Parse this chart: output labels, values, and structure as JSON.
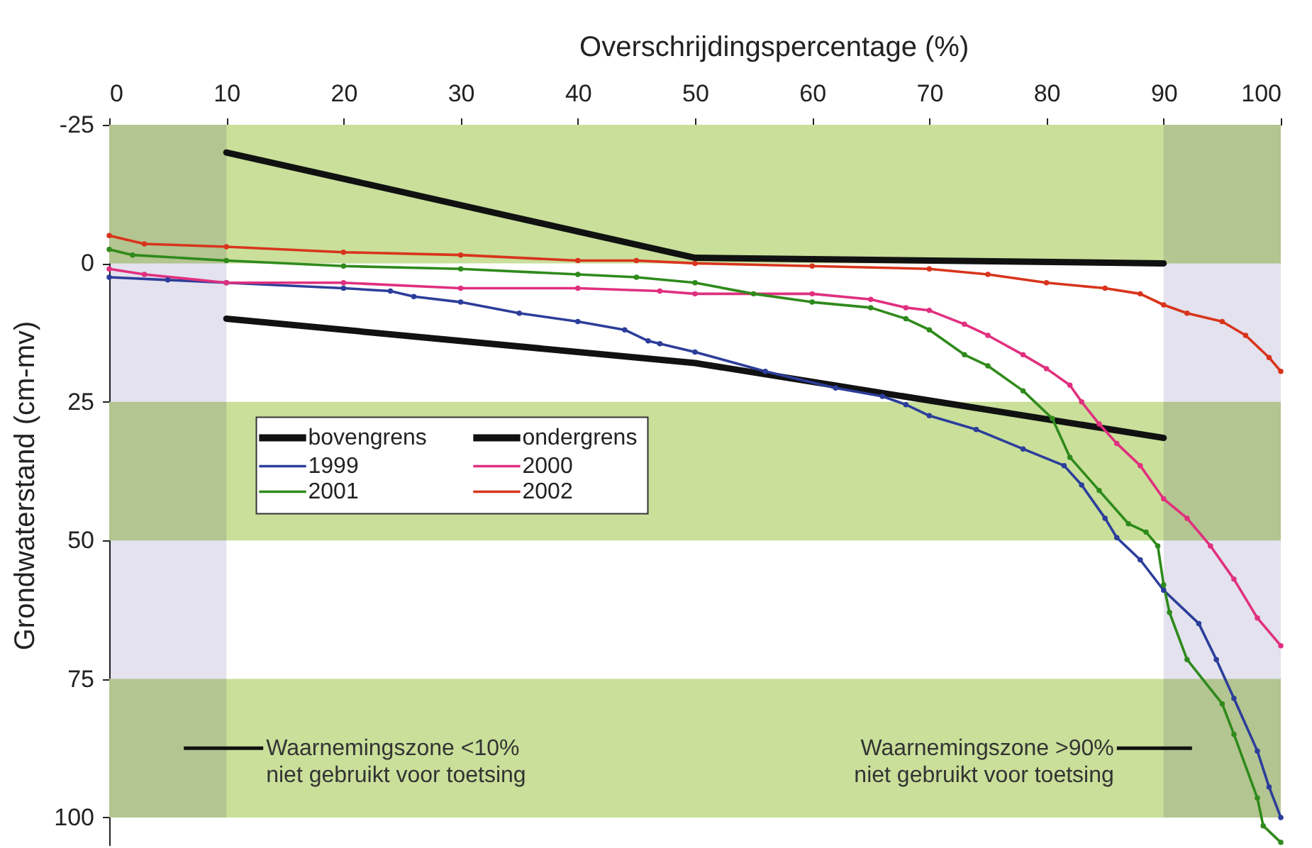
{
  "chart_data": {
    "type": "line",
    "xlabel": "Overschrijdingspercentage (%)",
    "ylabel": "Grondwaterstand (cm-mv)",
    "xlim": [
      0,
      100
    ],
    "xticks": [
      0,
      10,
      20,
      30,
      40,
      50,
      60,
      70,
      80,
      90,
      100
    ],
    "ylim": [
      105,
      -25
    ],
    "yticks": [
      -25,
      0,
      25,
      50,
      75,
      100
    ],
    "legend": "top left",
    "marker": "circle",
    "series": [
      {
        "name": "bovengrens",
        "color": "#111111",
        "x": [
          10,
          50,
          90
        ],
        "values": [
          -20,
          -1,
          0
        ]
      },
      {
        "name": "ondergrens",
        "color": "#111111",
        "x": [
          10,
          50,
          90
        ],
        "values": [
          10,
          18,
          31.5
        ]
      },
      {
        "name": "1999",
        "color": "#2c3e9a",
        "x": [
          0,
          5,
          10,
          20,
          24,
          26,
          30,
          35,
          40,
          44,
          46,
          47,
          50,
          56,
          62,
          66,
          68,
          70,
          74,
          78,
          81.5,
          83,
          85,
          86,
          88,
          90,
          93,
          94.5,
          96,
          98,
          99,
          100
        ],
        "values": [
          2.5,
          3,
          3.5,
          4.5,
          5,
          6,
          7,
          9,
          10.5,
          12,
          14,
          14.5,
          16,
          19.5,
          22.5,
          24,
          25.5,
          27.5,
          30,
          33.5,
          36.5,
          40,
          46,
          49.5,
          53.5,
          59,
          65,
          71.5,
          78.5,
          88,
          94.5,
          100
        ]
      },
      {
        "name": "2000",
        "color": "#e0307f",
        "x": [
          0,
          3,
          10,
          20,
          30,
          40,
          47,
          50,
          60,
          65,
          68,
          70,
          73,
          75,
          78,
          80,
          82,
          83,
          84.5,
          86,
          88,
          90,
          92,
          94,
          96,
          98,
          100
        ],
        "values": [
          1,
          2,
          3.5,
          3.5,
          4.5,
          4.5,
          5,
          5.5,
          5.5,
          6.5,
          8,
          8.5,
          11,
          13,
          16.5,
          19,
          22,
          25,
          29,
          32.5,
          36.5,
          42.5,
          46,
          51,
          57,
          64,
          69
        ]
      },
      {
        "name": "2001",
        "color": "#2f8a1c",
        "x": [
          0,
          2,
          10,
          20,
          30,
          40,
          45,
          50,
          55,
          60,
          65,
          68,
          70,
          73,
          75,
          78,
          80.5,
          82,
          84.5,
          87,
          88.5,
          89.5,
          90,
          90.5,
          92,
          95,
          96,
          98,
          98.5,
          100
        ],
        "values": [
          -2.5,
          -1.5,
          -0.5,
          0.5,
          1,
          2,
          2.5,
          3.5,
          5.5,
          7,
          8,
          10,
          12,
          16.5,
          18.5,
          23,
          28,
          35,
          41,
          47,
          48.5,
          51,
          58,
          63,
          71.5,
          79.5,
          85,
          96.5,
          101.5,
          104.5
        ]
      },
      {
        "name": "2002",
        "color": "#d8341c",
        "x": [
          0,
          3,
          10,
          20,
          30,
          40,
          45,
          50,
          60,
          70,
          75,
          80,
          85,
          88,
          90,
          92,
          95,
          97,
          99,
          100
        ],
        "values": [
          -5,
          -3.5,
          -3,
          -2,
          -1.5,
          -0.5,
          -0.5,
          0,
          0.5,
          1,
          2,
          3.5,
          4.5,
          5.5,
          7.5,
          9,
          10.5,
          13,
          17,
          19.5
        ]
      }
    ],
    "bands": [
      {
        "axis": "y",
        "from": -25,
        "to": 0,
        "color": "#c9df9a"
      },
      {
        "axis": "y",
        "from": 25,
        "to": 50,
        "color": "#c9df9a"
      },
      {
        "axis": "y",
        "from": 75,
        "to": 100,
        "color": "#c9df9a"
      },
      {
        "axis": "x",
        "from": 0,
        "to": 10,
        "color": "#e3e2ee"
      },
      {
        "axis": "x",
        "from": 90,
        "to": 100,
        "color": "#e3e2ee"
      }
    ],
    "annotations": [
      "Waarnemingszone <10%\nniet gebruikt voor toetsing",
      "Waarnemingszone >90%\nniet gebruikt voor toetsing"
    ]
  }
}
